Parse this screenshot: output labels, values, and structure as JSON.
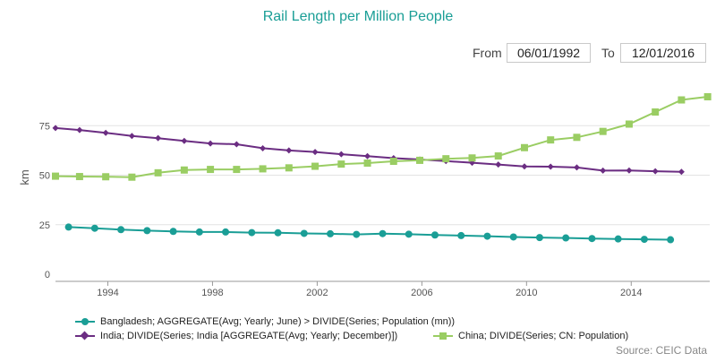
{
  "chart_data": {
    "type": "line",
    "title": "Rail Length per Million People",
    "ylabel": "km",
    "ylim": [
      0,
      100
    ],
    "yticks": [
      0,
      25,
      50,
      75
    ],
    "xlim": [
      1992.0,
      2017.0
    ],
    "xticks": [
      "1994",
      "1998",
      "2002",
      "2006",
      "2010",
      "2014"
    ],
    "grid": "horizontal",
    "legend_position": "bottom",
    "series": [
      {
        "name": "Bangladesh; AGGREGATE(Avg; Yearly; June) > DIVIDE(Series; Population (mn))",
        "color": "#1a9e96",
        "marker": "circle",
        "x": [
          1992.5,
          1993.5,
          1994.5,
          1995.5,
          1996.5,
          1997.5,
          1998.5,
          1999.5,
          2000.5,
          2001.5,
          2002.5,
          2003.5,
          2004.5,
          2005.5,
          2006.5,
          2007.5,
          2008.5,
          2009.5,
          2010.5,
          2011.5,
          2012.5,
          2013.5,
          2014.5,
          2015.5
        ],
        "y": [
          23.8,
          23.2,
          22.5,
          22.0,
          21.6,
          21.3,
          21.3,
          21.0,
          20.9,
          20.6,
          20.4,
          20.1,
          20.5,
          20.2,
          19.8,
          19.5,
          19.2,
          18.8,
          18.5,
          18.3,
          18.0,
          17.8,
          17.6,
          17.4
        ]
      },
      {
        "name": "India; DIVIDE(Series; India [AGGREGATE(Avg; Yearly; December)])",
        "color": "#6b2d82",
        "marker": "diamond",
        "x": [
          1992.0,
          1992.92,
          1993.92,
          1994.92,
          1995.92,
          1996.92,
          1997.92,
          1998.92,
          1999.92,
          2000.92,
          2001.92,
          2002.92,
          2003.92,
          2004.92,
          2005.92,
          2006.92,
          2007.92,
          2008.92,
          2009.92,
          2010.92,
          2011.92,
          2012.92,
          2013.92,
          2014.92,
          2015.92
        ],
        "y": [
          73.8,
          72.8,
          71.4,
          69.8,
          68.7,
          67.3,
          66.0,
          65.6,
          63.6,
          62.5,
          61.7,
          60.6,
          59.6,
          58.6,
          57.9,
          57.1,
          56.3,
          55.4,
          54.4,
          54.3,
          53.9,
          52.3,
          52.4,
          52.0,
          51.7
        ]
      },
      {
        "name": "China; DIVIDE(Series; CN: Population)",
        "color": "#9acd63",
        "marker": "square",
        "x": [
          1992.0,
          1992.92,
          1993.92,
          1994.92,
          1995.92,
          1996.92,
          1997.92,
          1998.92,
          1999.92,
          2000.92,
          2001.92,
          2002.92,
          2003.92,
          2004.92,
          2005.92,
          2006.92,
          2007.92,
          2008.92,
          2009.92,
          2010.92,
          2011.92,
          2012.92,
          2013.92,
          2014.92,
          2015.92,
          2016.92
        ],
        "y": [
          49.5,
          49.3,
          49.2,
          49.0,
          51.2,
          52.6,
          52.9,
          52.9,
          53.2,
          53.7,
          54.5,
          55.6,
          56.1,
          57.0,
          57.5,
          58.3,
          58.7,
          59.7,
          63.9,
          67.8,
          69.1,
          72.1,
          75.8,
          81.9,
          88.0,
          89.6
        ]
      }
    ]
  },
  "controls": {
    "from_label": "From",
    "from_date": "06/01/1992",
    "to_label": "To",
    "to_date": "12/01/2016"
  },
  "source": "Source: CEIC Data"
}
